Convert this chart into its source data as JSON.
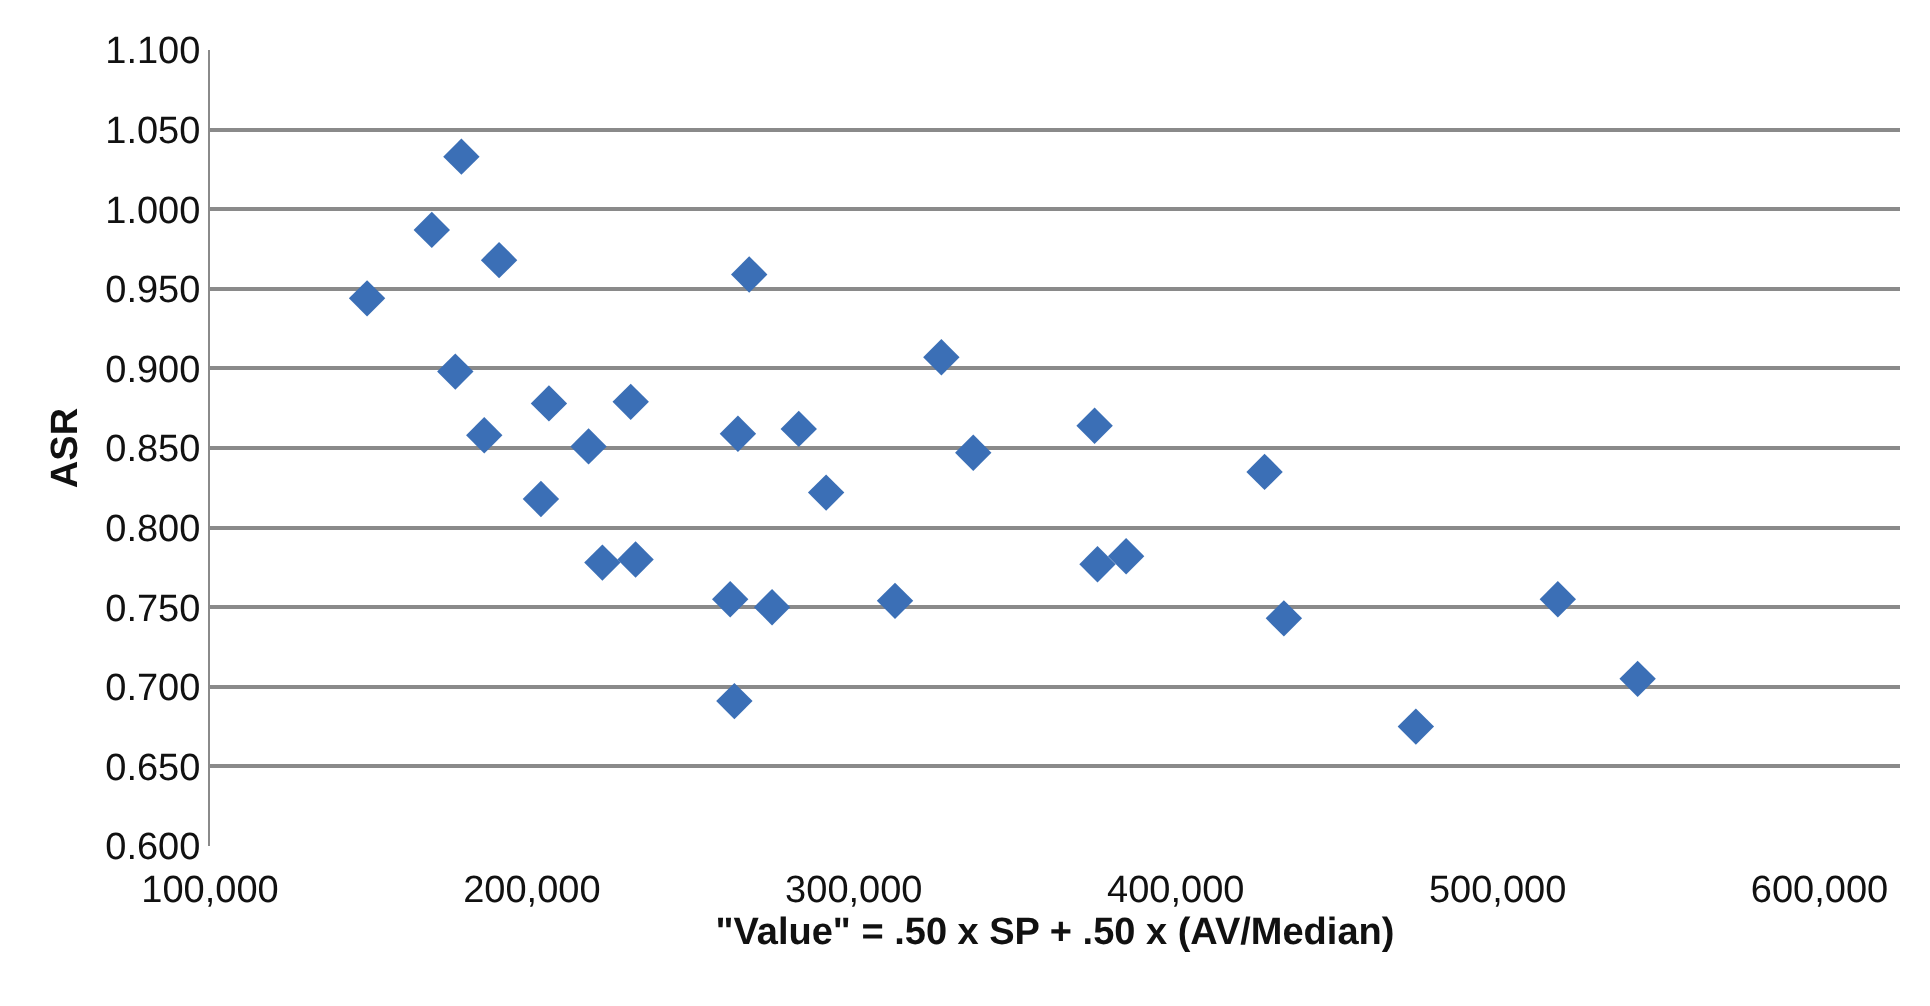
{
  "chart_data": {
    "type": "scatter",
    "xlabel": "\"Value\" = .50 x SP + .50 x (AV/Median)",
    "ylabel": "ASR",
    "x": [
      178100,
      168900,
      189800,
      148800,
      267500,
      176200,
      205300,
      230700,
      185200,
      217600,
      264000,
      282900,
      291400,
      202800,
      221900,
      232200,
      261600,
      274600,
      262900,
      327200,
      337100,
      374800,
      427600,
      375700,
      384600,
      312800,
      433600,
      518700,
      543500,
      474600
    ],
    "values": [
      1.033,
      0.987,
      0.968,
      0.944,
      0.959,
      0.898,
      0.878,
      0.879,
      0.858,
      0.851,
      0.859,
      0.862,
      0.822,
      0.818,
      0.778,
      0.78,
      0.755,
      0.75,
      0.691,
      0.907,
      0.847,
      0.864,
      0.835,
      0.777,
      0.782,
      0.754,
      0.743,
      0.755,
      0.705,
      0.675
    ],
    "color": "#3b6fb6",
    "marker": "diamond",
    "grid": "y",
    "xlim": [
      100000,
      625000
    ],
    "ylim": [
      0.6,
      1.1
    ],
    "xticks": [
      {
        "value": 100000,
        "label": "100,000"
      },
      {
        "value": 200000,
        "label": "200,000"
      },
      {
        "value": 300000,
        "label": "300,000"
      },
      {
        "value": 400000,
        "label": "400,000"
      },
      {
        "value": 500000,
        "label": "500,000"
      },
      {
        "value": 600000,
        "label": "600,000"
      }
    ],
    "yticks": [
      {
        "value": 0.6,
        "label": "0.600"
      },
      {
        "value": 0.65,
        "label": "0.650"
      },
      {
        "value": 0.7,
        "label": "0.700"
      },
      {
        "value": 0.75,
        "label": "0.750"
      },
      {
        "value": 0.8,
        "label": "0.800"
      },
      {
        "value": 0.85,
        "label": "0.850"
      },
      {
        "value": 0.9,
        "label": "0.900"
      },
      {
        "value": 0.95,
        "label": "0.950"
      },
      {
        "value": 1.0,
        "label": "1.000"
      },
      {
        "value": 1.05,
        "label": "1.050"
      },
      {
        "value": 1.1,
        "label": "1.100"
      }
    ]
  }
}
